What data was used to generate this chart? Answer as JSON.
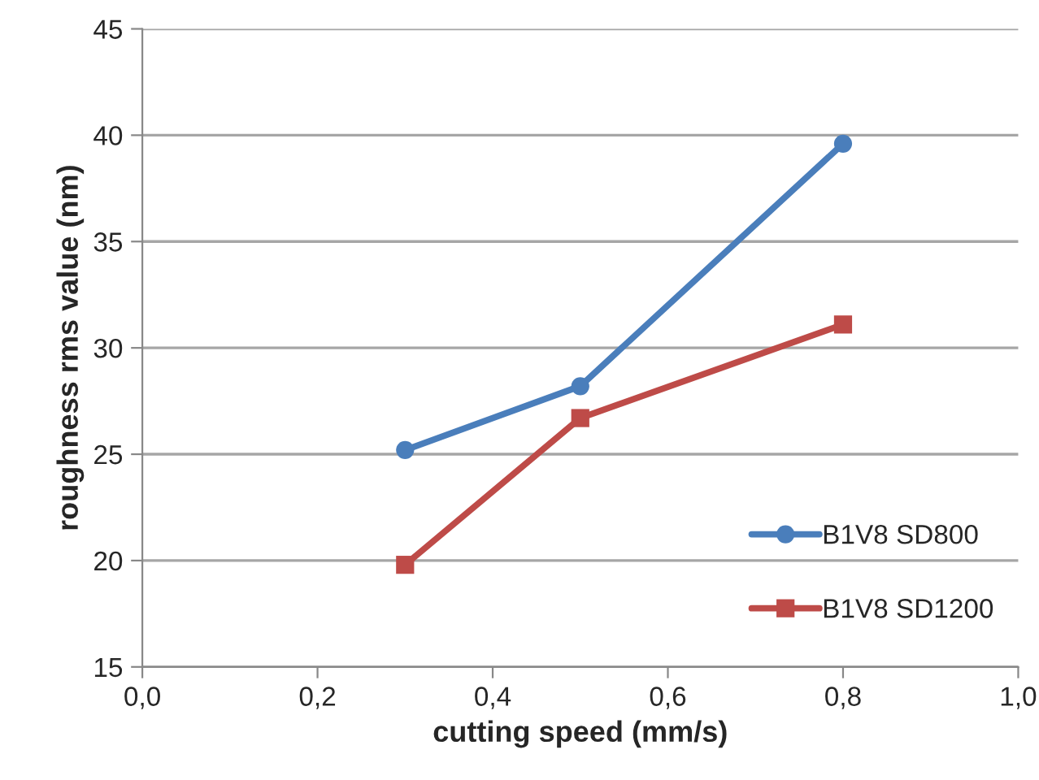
{
  "chart_data": {
    "type": "line",
    "xlabel": "cutting speed (mm/s)",
    "ylabel": "roughness rms value (nm)",
    "xlim": [
      0,
      1
    ],
    "xticks": [
      {
        "value": 0,
        "label": "0,0"
      },
      {
        "value": 0.2,
        "label": "0,2"
      },
      {
        "value": 0.4,
        "label": "0,4"
      },
      {
        "value": 0.6,
        "label": "0,6"
      },
      {
        "value": 0.8,
        "label": "0,8"
      },
      {
        "value": 1,
        "label": "1,0"
      }
    ],
    "ylim": [
      15,
      45
    ],
    "yticks": [
      15,
      20,
      25,
      30,
      35,
      40,
      45
    ],
    "grid": "y",
    "legend": "lower right",
    "line_style": "solid",
    "x": [
      0.3,
      0.5,
      0.8
    ],
    "series": [
      {
        "name": "B1V8 SD800",
        "color": "#4a7ebb",
        "marker": "circle",
        "values": [
          25.2,
          28.2,
          39.6
        ]
      },
      {
        "name": "B1V8 SD1200",
        "color": "#be4b48",
        "marker": "square",
        "values": [
          19.8,
          26.7,
          31.1
        ]
      }
    ]
  }
}
